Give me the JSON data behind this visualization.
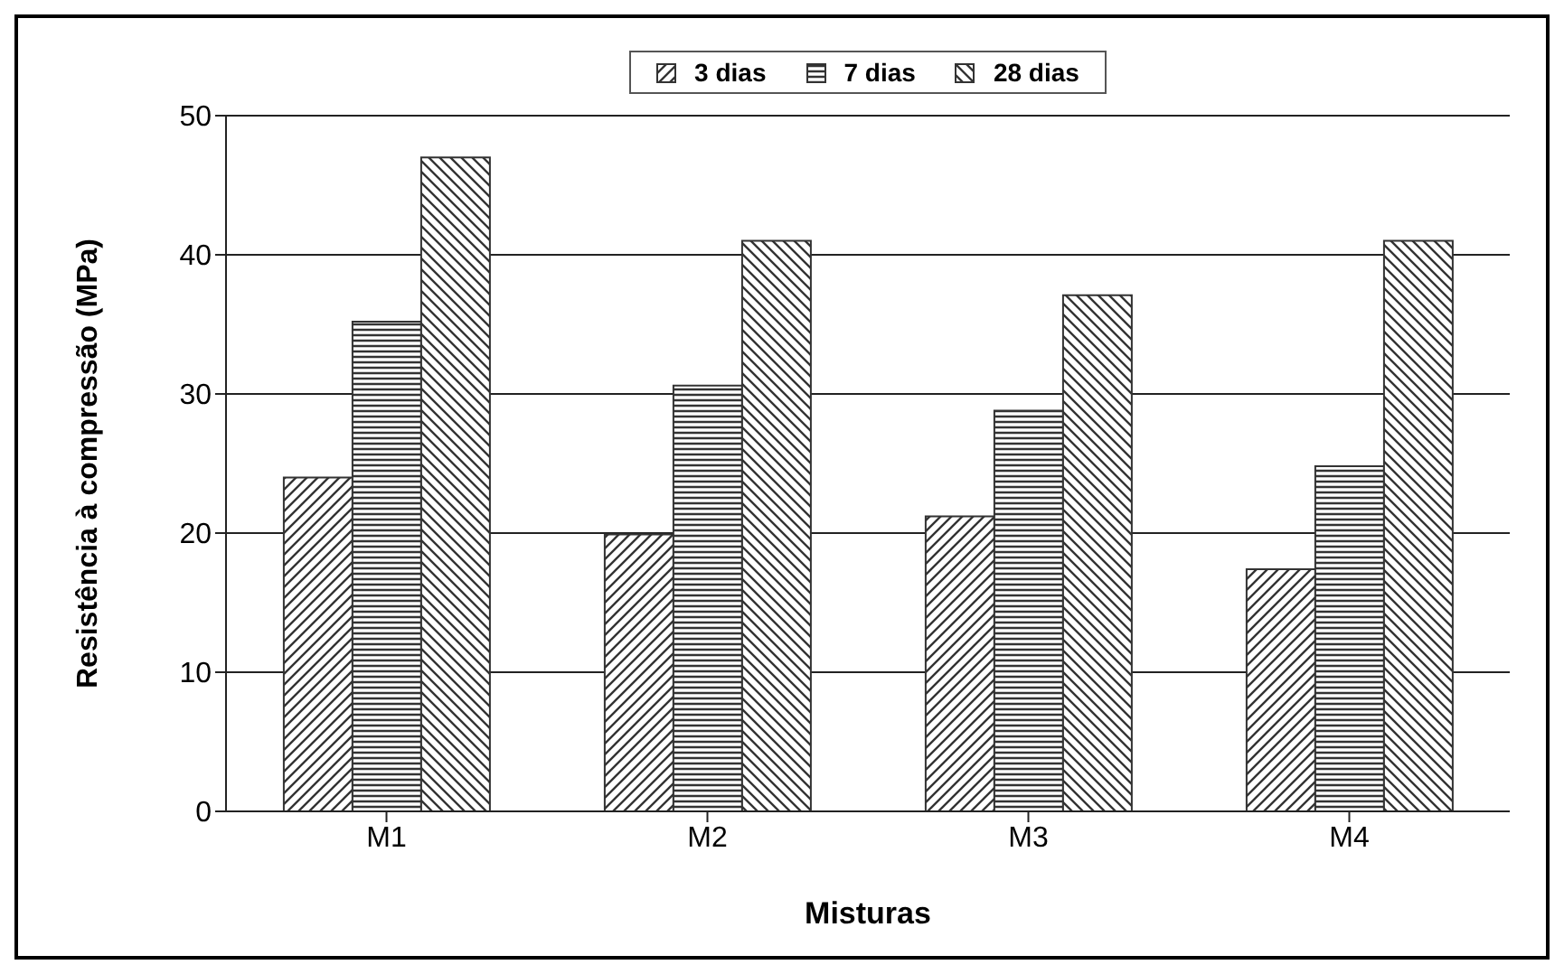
{
  "chart_data": {
    "type": "bar",
    "xlabel": "Misturas",
    "ylabel": "Resistência à compressão (MPa)",
    "categories": [
      "M1",
      "M2",
      "M3",
      "M4"
    ],
    "series": [
      {
        "name": "3 dias",
        "color": "#333333",
        "values": [
          24.0,
          19.9,
          21.2,
          17.4
        ]
      },
      {
        "name": "7 dias",
        "color": "#333333",
        "values": [
          35.2,
          30.6,
          28.8,
          24.8
        ]
      },
      {
        "name": "28 dias",
        "color": "#333333",
        "values": [
          47.0,
          41.0,
          37.1,
          41.0
        ]
      }
    ],
    "ylim": [
      0,
      50
    ],
    "yticks": [
      0,
      10,
      20,
      30,
      40,
      50
    ],
    "grid": "y",
    "legend": "top"
  }
}
